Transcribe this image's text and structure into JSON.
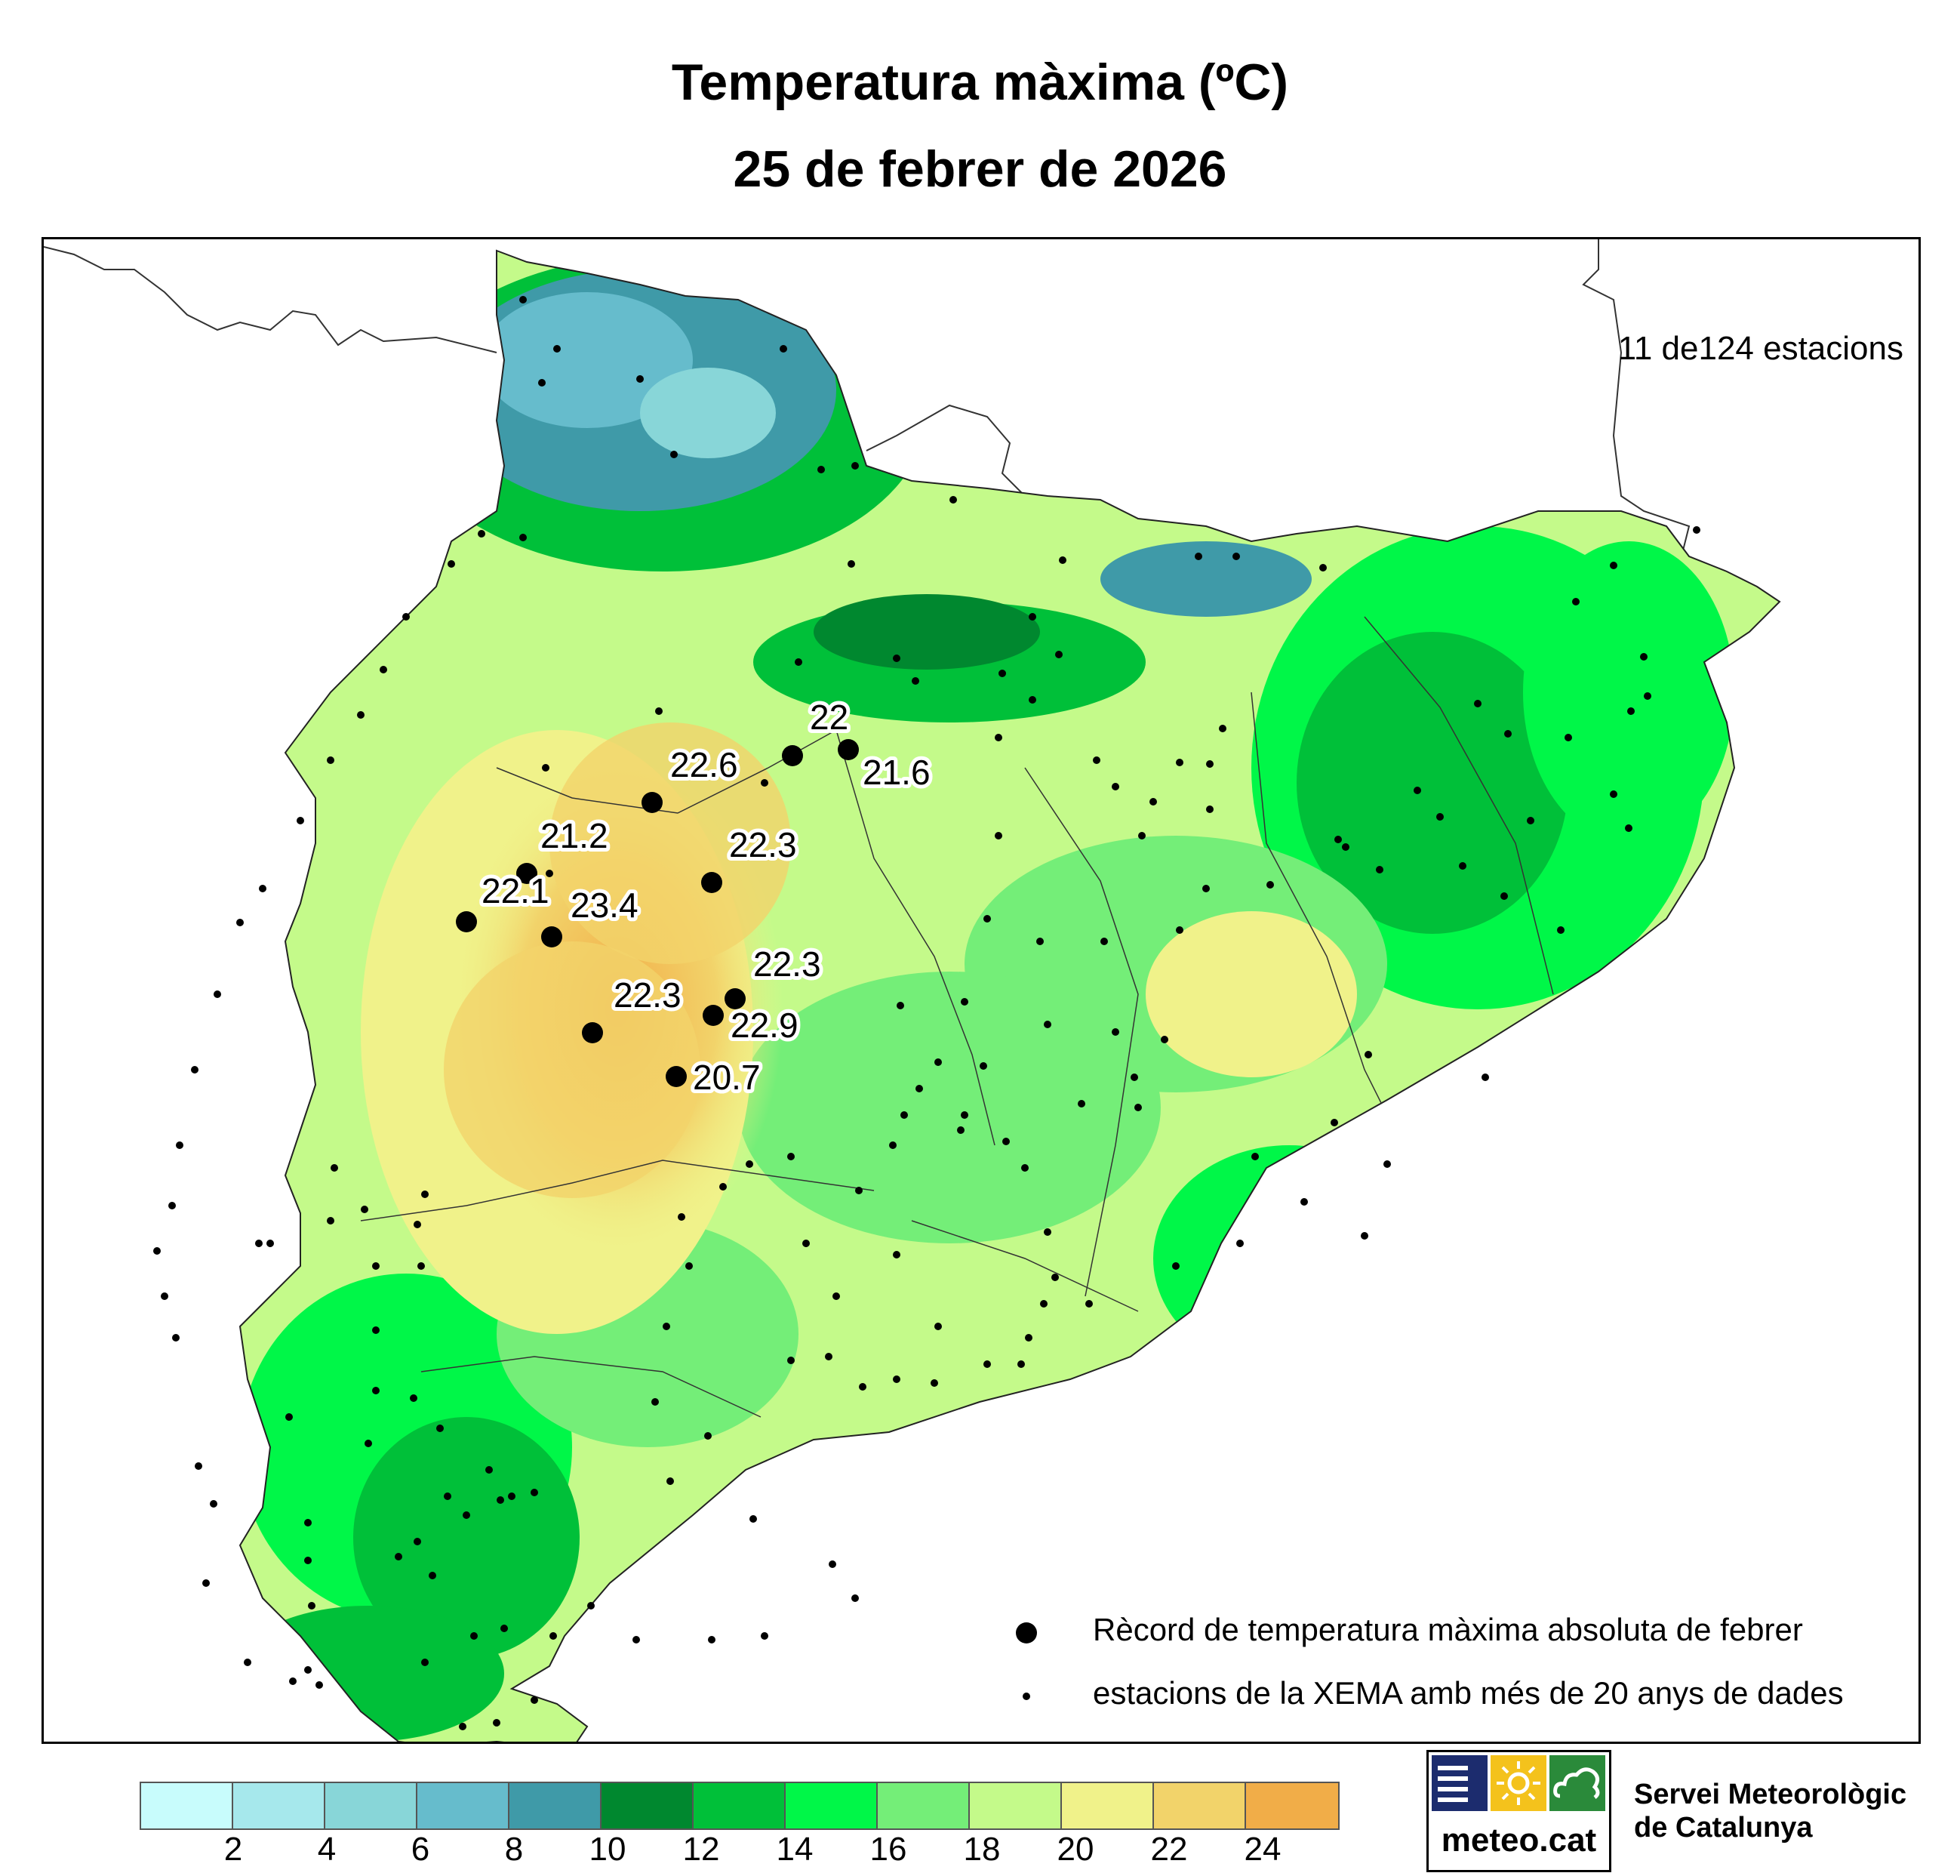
{
  "title": {
    "line1": "Temperatura màxima (ºC)",
    "line2": "25 de febrer de 2026"
  },
  "station_count": "11 de124 estacions",
  "legend": {
    "record_label": "Rècord de temperatura màxima absoluta de febrer",
    "station_label": "estacions de la XEMA amb més de 20 anys de dades"
  },
  "colorbar": {
    "colors": [
      "#c8fcfc",
      "#a6e8ec",
      "#88d6d8",
      "#66bccc",
      "#3f9aa8",
      "#00882f",
      "#00c039",
      "#00f748",
      "#74ee78",
      "#c4fa8a",
      "#f0f28a",
      "#f2d36a",
      "#f1ad48"
    ],
    "ticks": [
      "2",
      "4",
      "6",
      "8",
      "10",
      "12",
      "14",
      "16",
      "18",
      "20",
      "22",
      "24"
    ]
  },
  "records": [
    {
      "value": "22"
    },
    {
      "value": "21.6"
    },
    {
      "value": "22.6"
    },
    {
      "value": "21.2"
    },
    {
      "value": "22.3"
    },
    {
      "value": "22.1"
    },
    {
      "value": "23.4"
    },
    {
      "value": "22.3"
    },
    {
      "value": "22.3"
    },
    {
      "value": "22.9"
    },
    {
      "value": "20.7"
    }
  ],
  "logo": {
    "text": "meteo.cat",
    "icons": [
      "menu-bars-icon",
      "sun-icon",
      "cloud-icon"
    ],
    "colors": [
      "#1c2c6e",
      "#f4c21c",
      "#2a8a3a"
    ]
  },
  "organization": {
    "line1": "Servei Meteorològic",
    "line2": "de Catalunya"
  }
}
